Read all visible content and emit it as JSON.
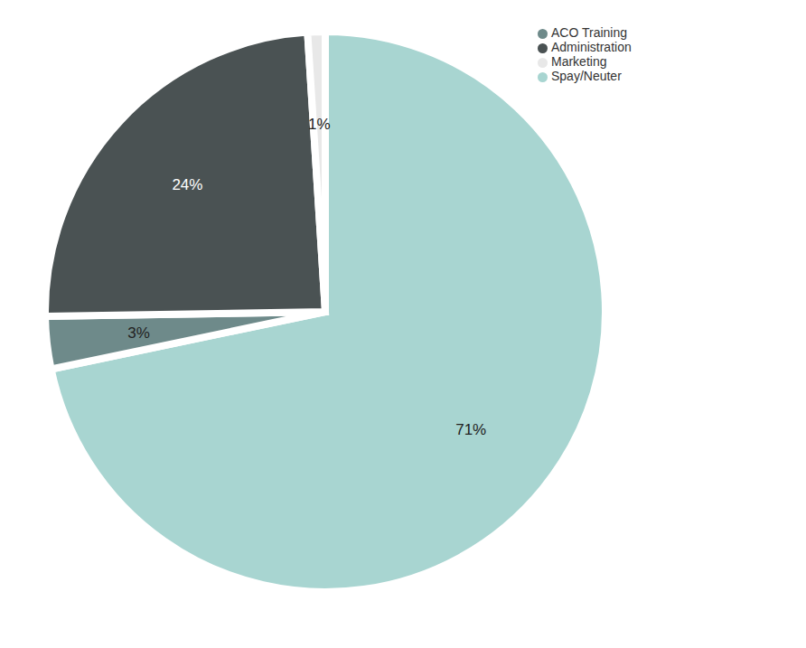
{
  "chart_data": {
    "type": "pie",
    "categories": [
      "Spay/Neuter",
      "ACO Training",
      "Administration",
      "Marketing"
    ],
    "values": [
      71,
      3,
      24,
      1
    ],
    "value_labels": [
      "71%",
      "3%",
      "24%",
      "1%"
    ],
    "colors": [
      "#a8d5d1",
      "#6e8a8a",
      "#4a5253",
      "#e8e8e8"
    ],
    "data_labels": true,
    "legend": "top-right"
  }
}
